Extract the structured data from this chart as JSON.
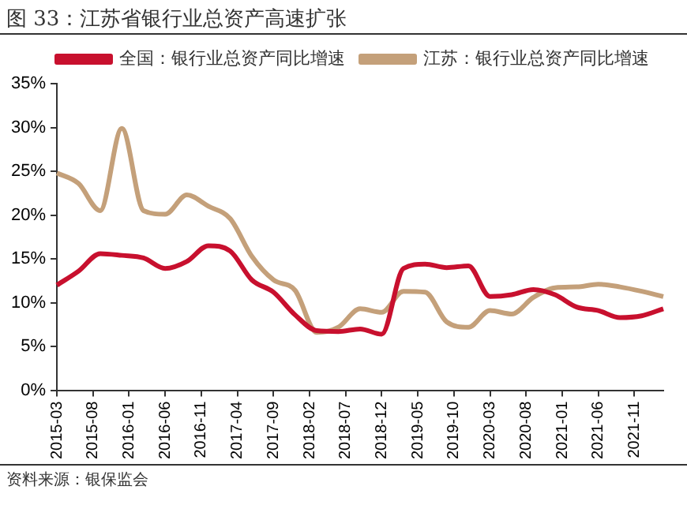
{
  "chart_data": {
    "type": "line",
    "title": "图 33：江苏省银行业总资产高速扩张",
    "categories": [
      "2015-03",
      null,
      null,
      null,
      null,
      "2015-08",
      null,
      null,
      null,
      null,
      "2016-01",
      null,
      null,
      null,
      null,
      "2016-06",
      null,
      null,
      null,
      null,
      "2016-11",
      null,
      null,
      null,
      null,
      "2017-04",
      null,
      null,
      null,
      null,
      "2017-09",
      null,
      null,
      null,
      null,
      "2018-02",
      null,
      null,
      null,
      null,
      "2018-07",
      null,
      null,
      null,
      null,
      "2018-12",
      null,
      null,
      null,
      null,
      "2019-05",
      null,
      null,
      null,
      null,
      "2019-10",
      null,
      null,
      null,
      null,
      "2020-03",
      null,
      null,
      null,
      null,
      "2020-08",
      null,
      null,
      null,
      null,
      "2021-01",
      null,
      null,
      null,
      null,
      "2021-06",
      null,
      null,
      null,
      null,
      "2021-11",
      null,
      null,
      null,
      null
    ],
    "series": [
      {
        "name": "全国：银行业总资产同比增速",
        "color": "#c8102e",
        "values": [
          12,
          null,
          null,
          13.6,
          null,
          null,
          15.6,
          null,
          null,
          15.4,
          null,
          null,
          15.1,
          null,
          null,
          13.9,
          null,
          null,
          14.7,
          null,
          null,
          16.5,
          null,
          null,
          15.9,
          null,
          null,
          12.6,
          null,
          null,
          11.2,
          null,
          null,
          8.6,
          null,
          null,
          6.8,
          null,
          null,
          6.7,
          null,
          null,
          7.0,
          null,
          null,
          6.4,
          null,
          null,
          13.9,
          null,
          null,
          14.4,
          null,
          null,
          14.0,
          null,
          null,
          14.2,
          null,
          null,
          10.7,
          null,
          null,
          10.9,
          null,
          null,
          11.5,
          null,
          null,
          10.9,
          null,
          null,
          9.5,
          null,
          null,
          9.1,
          null,
          null,
          8.3,
          null,
          null,
          8.5,
          null,
          null,
          9.3
        ]
      },
      {
        "name": "江苏：银行业总资产同比增速",
        "color": "#c4a07a",
        "values": [
          24.8,
          null,
          null,
          23.6,
          null,
          null,
          20.5,
          null,
          null,
          29.9,
          null,
          null,
          20.5,
          null,
          null,
          20.1,
          null,
          null,
          22.3,
          null,
          null,
          21.0,
          null,
          null,
          19.6,
          null,
          null,
          15.3,
          null,
          null,
          12.6,
          null,
          null,
          11.4,
          null,
          null,
          6.6,
          null,
          null,
          7.2,
          null,
          null,
          9.3,
          null,
          null,
          8.9,
          null,
          null,
          11.3,
          null,
          null,
          11.2,
          null,
          null,
          7.8,
          null,
          null,
          7.2,
          null,
          null,
          9.1,
          null,
          null,
          8.7,
          null,
          null,
          10.6,
          null,
          null,
          11.7,
          null,
          null,
          11.8,
          null,
          null,
          12.1,
          null,
          null,
          11.8,
          null,
          null,
          11.3,
          null,
          null,
          10.7
        ]
      }
    ],
    "ylim": [
      0,
      35
    ],
    "yticks": [
      {
        "value": 0,
        "label": "0%"
      },
      {
        "value": 5,
        "label": "5%"
      },
      {
        "value": 10,
        "label": "10%"
      },
      {
        "value": 15,
        "label": "15%"
      },
      {
        "value": 20,
        "label": "20%"
      },
      {
        "value": 25,
        "label": "25%"
      },
      {
        "value": 30,
        "label": "30%"
      },
      {
        "value": 35,
        "label": "35%"
      }
    ],
    "grid": false,
    "legend": "top right",
    "marker": "none",
    "line_style": "solid",
    "annotations": [
      "资料来源：银保监会"
    ]
  }
}
